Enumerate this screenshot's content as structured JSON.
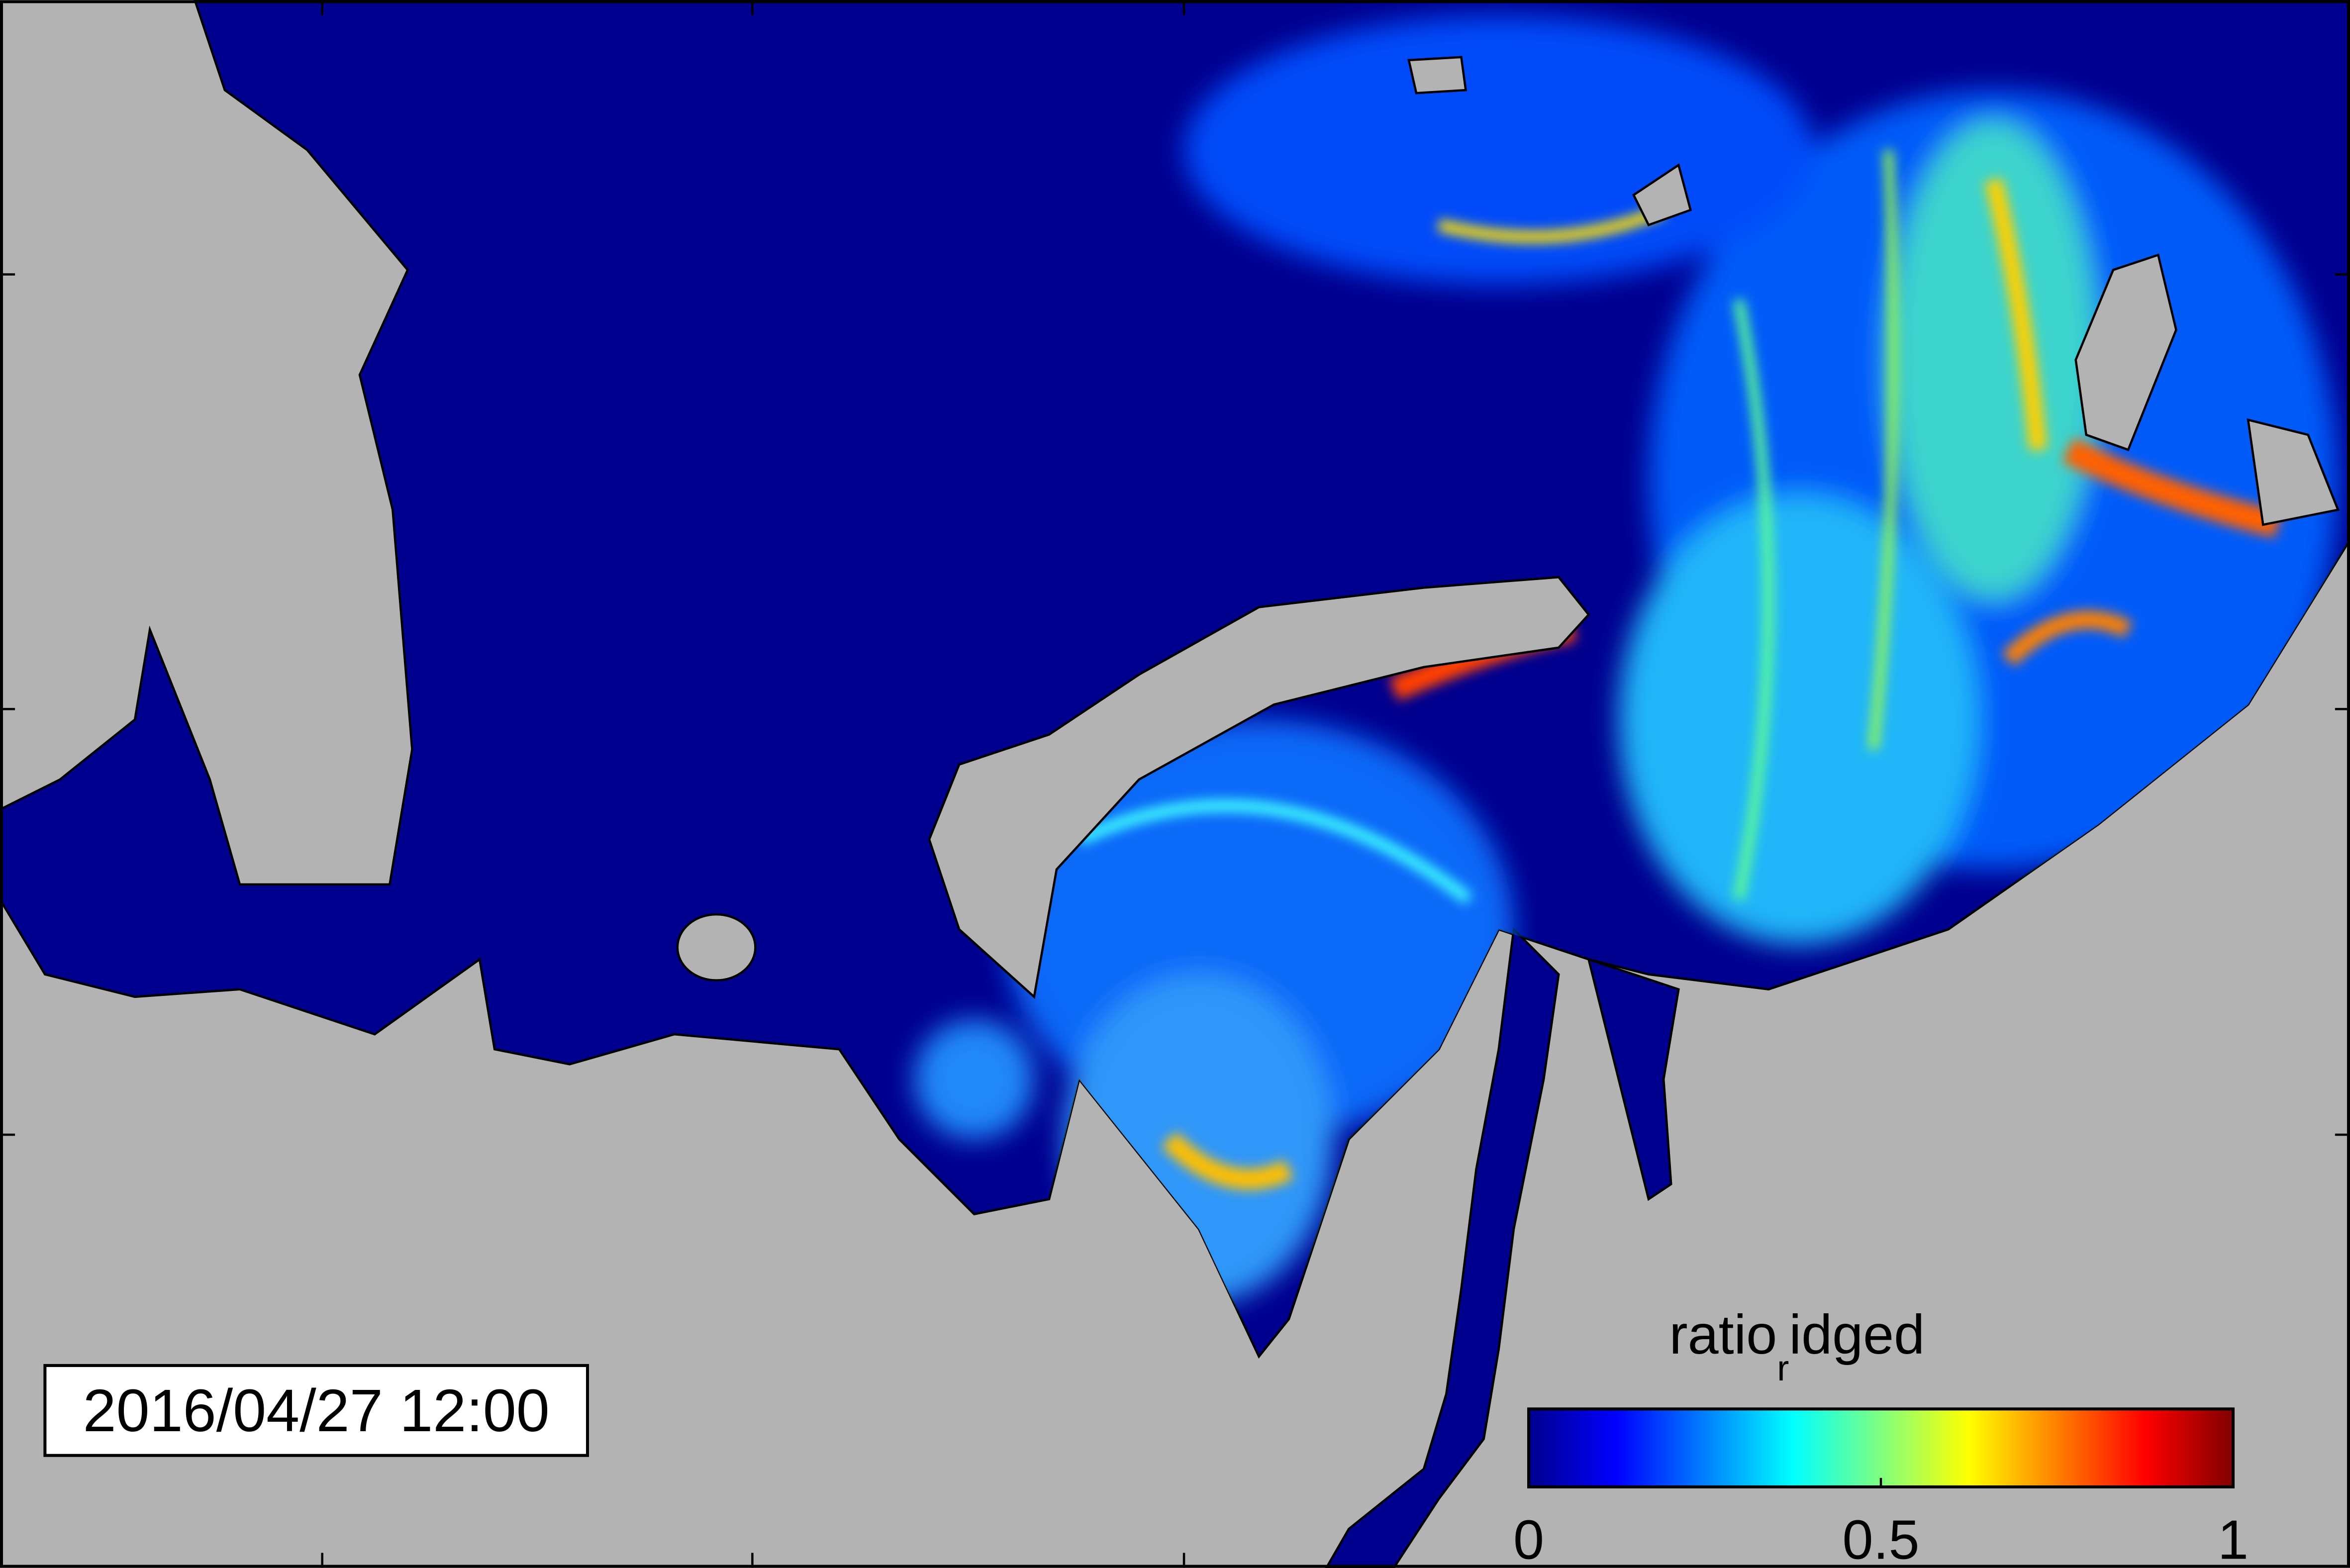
{
  "timestamp": "2016/04/27 12:00",
  "colorbar": {
    "label": {
      "text": "ratio",
      "subscript": "r",
      "rest": "idged"
    },
    "lim": [
      0,
      1
    ],
    "ticks": [
      0,
      0.5,
      1
    ],
    "colormap": "jet"
  }
}
